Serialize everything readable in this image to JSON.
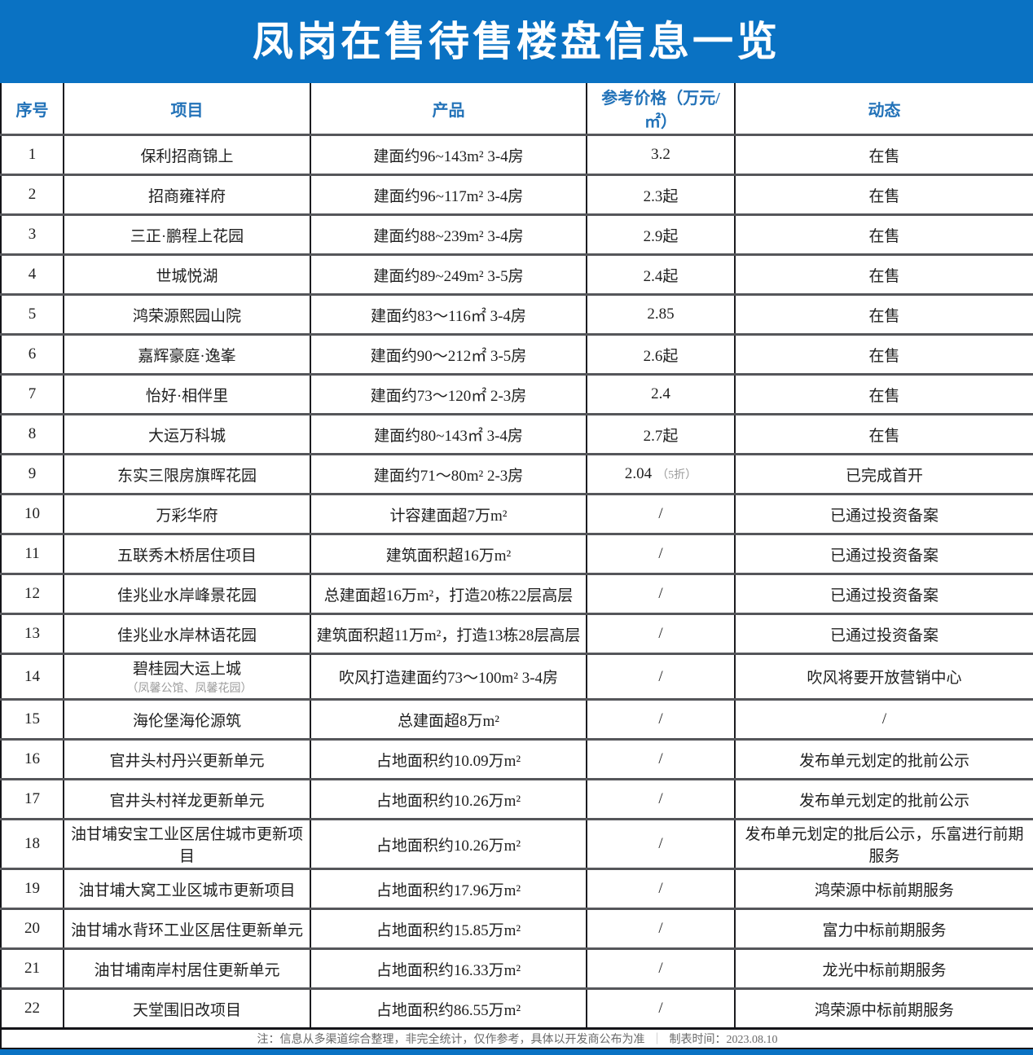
{
  "title": "凤岗在售待售楼盘信息一览",
  "colors": {
    "banner_blue": "#0a72c3",
    "header_text_blue": "#2272b8",
    "body_text": "#202020",
    "note_gray": "#9b9b9b"
  },
  "table": {
    "headers": [
      "序号",
      "项目",
      "产品",
      "参考价格（万元/㎡）",
      "动态"
    ],
    "rows": [
      {
        "no": "1",
        "project": "保利招商锦上",
        "project_note": "",
        "product": "建面约96~143m² 3-4房",
        "price": "3.2",
        "price_note": "",
        "status": "在售"
      },
      {
        "no": "2",
        "project": "招商雍祥府",
        "project_note": "",
        "product": "建面约96~117m² 3-4房",
        "price": "2.3起",
        "price_note": "",
        "status": "在售"
      },
      {
        "no": "3",
        "project": "三正·鹏程上花园",
        "project_note": "",
        "product": "建面约88~239m² 3-4房",
        "price": "2.9起",
        "price_note": "",
        "status": "在售"
      },
      {
        "no": "4",
        "project": "世城悦湖",
        "project_note": "",
        "product": "建面约89~249m² 3-5房",
        "price": "2.4起",
        "price_note": "",
        "status": "在售"
      },
      {
        "no": "5",
        "project": "鸿荣源熙园山院",
        "project_note": "",
        "product": "建面约83～116㎡ 3-4房",
        "price": "2.85",
        "price_note": "",
        "status": "在售"
      },
      {
        "no": "6",
        "project": "嘉辉豪庭·逸峯",
        "project_note": "",
        "product": "建面约90～212㎡ 3-5房",
        "price": "2.6起",
        "price_note": "",
        "status": "在售"
      },
      {
        "no": "7",
        "project": "怡好·相伴里",
        "project_note": "",
        "product": "建面约73～120㎡ 2-3房",
        "price": "2.4",
        "price_note": "",
        "status": "在售"
      },
      {
        "no": "8",
        "project": "大运万科城",
        "project_note": "",
        "product": "建面约80~143㎡ 3-4房",
        "price": "2.7起",
        "price_note": "",
        "status": "在售"
      },
      {
        "no": "9",
        "project": "东实三限房旗晖花园",
        "project_note": "",
        "product": "建面约71～80m² 2-3房",
        "price": "2.04",
        "price_note": "（5折）",
        "status": "已完成首开"
      },
      {
        "no": "10",
        "project": "万彩华府",
        "project_note": "",
        "product": "计容建面超7万m²",
        "price": "/",
        "price_note": "",
        "status": "已通过投资备案"
      },
      {
        "no": "11",
        "project": "五联秀木桥居住项目",
        "project_note": "",
        "product": "建筑面积超16万m²",
        "price": "/",
        "price_note": "",
        "status": "已通过投资备案"
      },
      {
        "no": "12",
        "project": "佳兆业水岸峰景花园",
        "project_note": "",
        "product": "总建面超16万m²，打造20栋22层高层",
        "price": "/",
        "price_note": "",
        "status": "已通过投资备案"
      },
      {
        "no": "13",
        "project": "佳兆业水岸林语花园",
        "project_note": "",
        "product": "建筑面积超11万m²，打造13栋28层高层",
        "price": "/",
        "price_note": "",
        "status": "已通过投资备案"
      },
      {
        "no": "14",
        "project": "碧桂园大运上城",
        "project_note": "（凤馨公馆、凤馨花园）",
        "product": "吹风打造建面约73～100m² 3-4房",
        "price": "/",
        "price_note": "",
        "status": "吹风将要开放营销中心"
      },
      {
        "no": "15",
        "project": "海伦堡海伦源筑",
        "project_note": "",
        "product": "总建面超8万m²",
        "price": "/",
        "price_note": "",
        "status": "/"
      },
      {
        "no": "16",
        "project": "官井头村丹兴更新单元",
        "project_note": "",
        "product": "占地面积约10.09万m²",
        "price": "/",
        "price_note": "",
        "status": "发布单元划定的批前公示"
      },
      {
        "no": "17",
        "project": "官井头村祥龙更新单元",
        "project_note": "",
        "product": "占地面积约10.26万m²",
        "price": "/",
        "price_note": "",
        "status": "发布单元划定的批前公示"
      },
      {
        "no": "18",
        "project": "油甘埔安宝工业区居住城市更新项目",
        "project_note": "",
        "product": "占地面积约10.26万m²",
        "price": "/",
        "price_note": "",
        "status": "发布单元划定的批后公示，乐富进行前期服务"
      },
      {
        "no": "19",
        "project": "油甘埔大窝工业区城市更新项目",
        "project_note": "",
        "product": "占地面积约17.96万m²",
        "price": "/",
        "price_note": "",
        "status": "鸿荣源中标前期服务"
      },
      {
        "no": "20",
        "project": "油甘埔水背环工业区居住更新单元",
        "project_note": "",
        "product": "占地面积约15.85万m²",
        "price": "/",
        "price_note": "",
        "status": "富力中标前期服务"
      },
      {
        "no": "21",
        "project": "油甘埔南岸村居住更新单元",
        "project_note": "",
        "product": "占地面积约16.33万m²",
        "price": "/",
        "price_note": "",
        "status": "龙光中标前期服务"
      },
      {
        "no": "22",
        "project": "天堂围旧改项目",
        "project_note": "",
        "product": "占地面积约86.55万m²",
        "price": "/",
        "price_note": "",
        "status": "鸿荣源中标前期服务"
      }
    ]
  },
  "footer": {
    "note": "注：信息从多渠道综合整理，非完全统计，仅作参考，具体以开发商公布为准",
    "separator": "｜",
    "timestamp": "制表时间：2023.08.10"
  }
}
